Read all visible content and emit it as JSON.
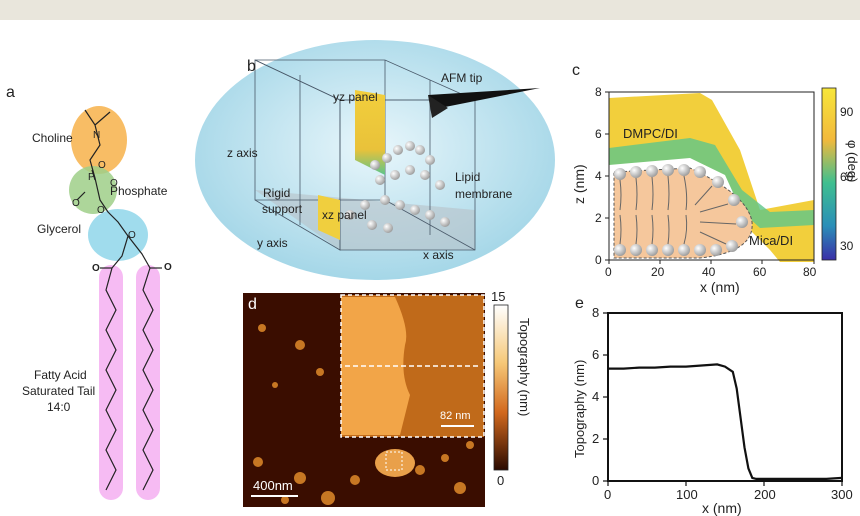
{
  "panels": {
    "a": {
      "letter": "a",
      "labels": {
        "choline": "Choline",
        "phosphate": "Phosphate",
        "glycerol": "Glycerol",
        "tail_line1": "Fatty Acid",
        "tail_line2": "Saturated Tail",
        "tail_line3": "14:0",
        "n_plus": "N",
        "o1": "O",
        "o2": "O",
        "o3": "O",
        "o4": "O",
        "o5": "O",
        "o6": "O",
        "p": "P",
        "o_minus": "O"
      }
    },
    "b": {
      "letter": "b",
      "labels": {
        "afm_tip": "AFM tip",
        "yz_panel": "yz panel",
        "z_axis": "z axis",
        "lipid_line1": "Lipid",
        "lipid_line2": "membrane",
        "rigid_line1": "Rigid",
        "rigid_line2": "support",
        "xz_panel": "xz panel",
        "y_axis": "y axis",
        "x_axis": "x axis"
      }
    },
    "c": {
      "letter": "c",
      "xlabel": "x (nm)",
      "ylabel": "z (nm)",
      "cbar_label": "φ (deg)",
      "x_ticks": [
        "0",
        "20",
        "40",
        "60",
        "80"
      ],
      "y_ticks": [
        "0",
        "2",
        "4",
        "6",
        "8"
      ],
      "cbar_ticks": [
        "90",
        "60",
        "30"
      ],
      "region_top": "DMPC/DI",
      "region_bottom": "Mica/DI",
      "colors": {
        "yellow": "#f2cf3c",
        "green": "#3fbf8f",
        "blue": "#3a3fb5"
      }
    },
    "d": {
      "letter": "d",
      "scalebar": "400nm",
      "inset_scalebar": "82 nm",
      "cbar_label": "Topography (nm)",
      "cbar_ticks": [
        "15",
        "0"
      ]
    },
    "e": {
      "letter": "e",
      "xlabel": "x (nm)",
      "ylabel": "Topography (nm)",
      "x_ticks": [
        "0",
        "100",
        "200",
        "300"
      ],
      "y_ticks": [
        "0",
        "2",
        "4",
        "6",
        "8"
      ]
    }
  },
  "chart_data": [
    {
      "type": "line",
      "xlabel": "x (nm)",
      "ylabel": "Topography (nm)",
      "xlim": [
        0,
        300
      ],
      "ylim": [
        0,
        8
      ],
      "x": [
        0,
        20,
        40,
        60,
        80,
        100,
        120,
        140,
        150,
        160,
        165,
        170,
        175,
        180,
        185,
        190,
        200,
        220,
        240,
        260,
        280,
        300
      ],
      "series": [
        {
          "values": [
            5.35,
            5.35,
            5.4,
            5.4,
            5.45,
            5.45,
            5.5,
            5.55,
            5.45,
            5.2,
            4.4,
            3.0,
            1.6,
            0.6,
            0.15,
            0.1,
            0.1,
            0.1,
            0.1,
            0.1,
            0.1,
            0.15
          ]
        }
      ]
    }
  ]
}
